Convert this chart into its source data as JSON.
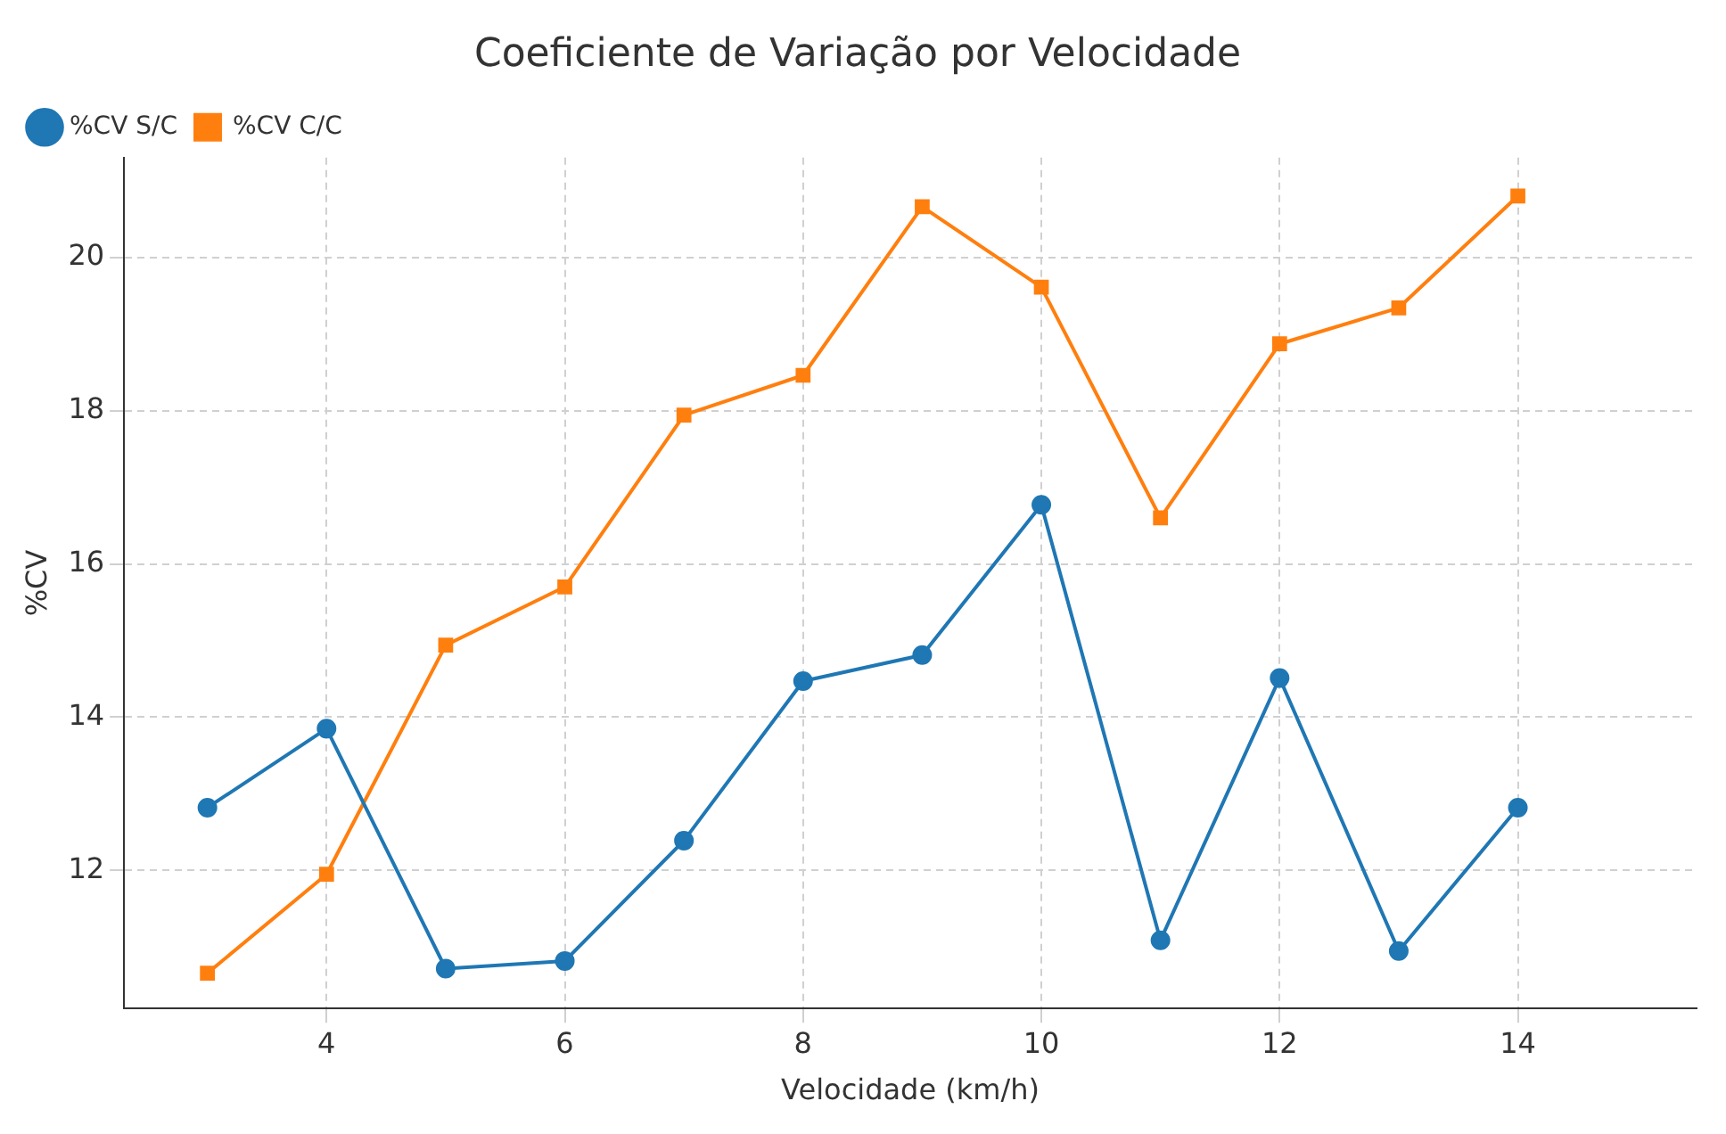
{
  "chart_data": {
    "type": "line",
    "title": "Coeficiente de Variação por Velocidade",
    "xlabel": "Velocidade (km/h)",
    "ylabel": "%CV",
    "x": [
      3,
      4,
      5,
      6,
      7,
      8,
      9,
      10,
      11,
      12,
      13,
      14
    ],
    "series": [
      {
        "name": "%CV S/C",
        "color": "#1f77b4",
        "marker": "circle",
        "values": [
          12.82,
          13.85,
          10.72,
          10.82,
          12.39,
          14.47,
          14.81,
          16.77,
          11.09,
          14.51,
          10.95,
          12.82
        ]
      },
      {
        "name": "%CV C/C",
        "color": "#ff7f0e",
        "marker": "square",
        "values": [
          10.66,
          11.95,
          14.94,
          15.7,
          17.94,
          18.46,
          20.66,
          19.61,
          16.6,
          18.87,
          19.34,
          20.8
        ]
      }
    ],
    "xlim": [
      2.3,
      15.5
    ],
    "xticks": [
      4,
      6,
      8,
      10,
      12,
      14
    ],
    "ylim": [
      10.2,
      21.3
    ],
    "yticks": [
      12,
      14,
      16,
      18,
      20
    ],
    "grid": true,
    "legend": "top left",
    "line_style": "solid"
  }
}
